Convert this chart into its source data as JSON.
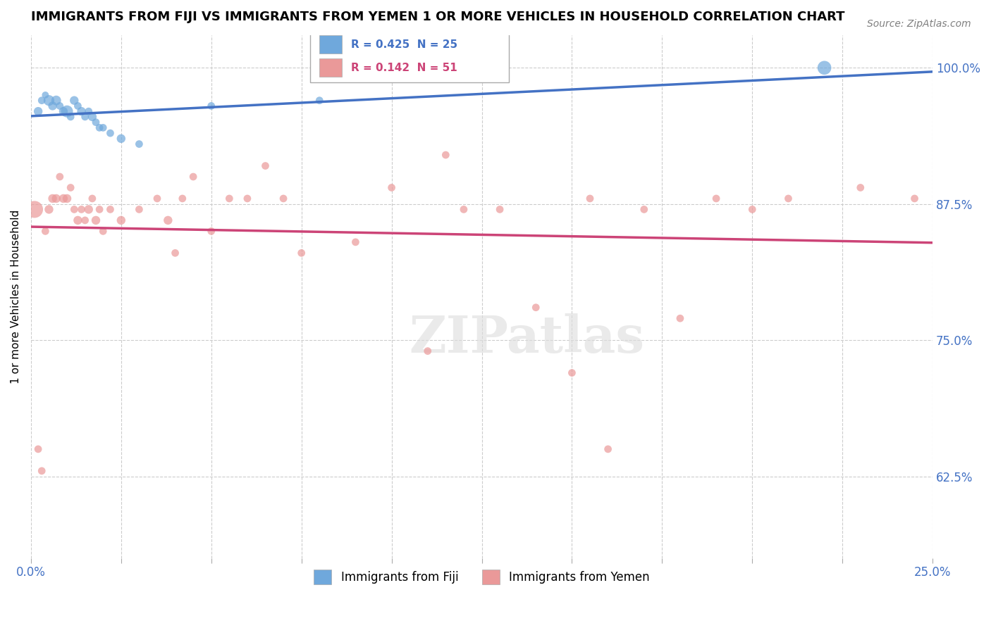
{
  "title": "IMMIGRANTS FROM FIJI VS IMMIGRANTS FROM YEMEN 1 OR MORE VEHICLES IN HOUSEHOLD CORRELATION CHART",
  "source": "Source: ZipAtlas.com",
  "xlabel": "",
  "ylabel": "1 or more Vehicles in Household",
  "xlim": [
    0.0,
    0.25
  ],
  "ylim": [
    0.55,
    1.03
  ],
  "xticks": [
    0.0,
    0.025,
    0.05,
    0.075,
    0.1,
    0.125,
    0.15,
    0.175,
    0.2,
    0.225,
    0.25
  ],
  "xtick_labels": [
    "0.0%",
    "",
    "",
    "",
    "",
    "",
    "",
    "",
    "",
    "",
    "25.0%"
  ],
  "ytick_labels_right": [
    "100.0%",
    "87.5%",
    "75.0%",
    "62.5%"
  ],
  "yticks_right": [
    1.0,
    0.875,
    0.75,
    0.625
  ],
  "fiji_R": 0.425,
  "fiji_N": 25,
  "yemen_R": 0.142,
  "yemen_N": 51,
  "fiji_color": "#6fa8dc",
  "yemen_color": "#ea9999",
  "fiji_line_color": "#4472c4",
  "yemen_line_color": "#cc4477",
  "watermark": "ZIPatlas",
  "fiji_points": [
    [
      0.002,
      0.96
    ],
    [
      0.003,
      0.97
    ],
    [
      0.004,
      0.975
    ],
    [
      0.005,
      0.97
    ],
    [
      0.006,
      0.965
    ],
    [
      0.007,
      0.97
    ],
    [
      0.008,
      0.965
    ],
    [
      0.009,
      0.96
    ],
    [
      0.01,
      0.96
    ],
    [
      0.011,
      0.955
    ],
    [
      0.012,
      0.97
    ],
    [
      0.013,
      0.965
    ],
    [
      0.014,
      0.96
    ],
    [
      0.015,
      0.955
    ],
    [
      0.016,
      0.96
    ],
    [
      0.017,
      0.955
    ],
    [
      0.018,
      0.95
    ],
    [
      0.019,
      0.945
    ],
    [
      0.02,
      0.945
    ],
    [
      0.022,
      0.94
    ],
    [
      0.025,
      0.935
    ],
    [
      0.03,
      0.93
    ],
    [
      0.05,
      0.965
    ],
    [
      0.08,
      0.97
    ],
    [
      0.22,
      1.0
    ]
  ],
  "fiji_sizes": [
    80,
    60,
    50,
    120,
    80,
    100,
    60,
    80,
    150,
    60,
    80,
    60,
    80,
    60,
    60,
    80,
    60,
    60,
    60,
    60,
    80,
    60,
    60,
    60,
    200
  ],
  "yemen_points": [
    [
      0.001,
      0.87
    ],
    [
      0.002,
      0.65
    ],
    [
      0.003,
      0.63
    ],
    [
      0.004,
      0.85
    ],
    [
      0.005,
      0.87
    ],
    [
      0.006,
      0.88
    ],
    [
      0.007,
      0.88
    ],
    [
      0.008,
      0.9
    ],
    [
      0.009,
      0.88
    ],
    [
      0.01,
      0.88
    ],
    [
      0.011,
      0.89
    ],
    [
      0.012,
      0.87
    ],
    [
      0.013,
      0.86
    ],
    [
      0.014,
      0.87
    ],
    [
      0.015,
      0.86
    ],
    [
      0.016,
      0.87
    ],
    [
      0.017,
      0.88
    ],
    [
      0.018,
      0.86
    ],
    [
      0.019,
      0.87
    ],
    [
      0.02,
      0.85
    ],
    [
      0.022,
      0.87
    ],
    [
      0.025,
      0.86
    ],
    [
      0.03,
      0.87
    ],
    [
      0.035,
      0.88
    ],
    [
      0.038,
      0.86
    ],
    [
      0.04,
      0.83
    ],
    [
      0.042,
      0.88
    ],
    [
      0.045,
      0.9
    ],
    [
      0.05,
      0.85
    ],
    [
      0.055,
      0.88
    ],
    [
      0.06,
      0.88
    ],
    [
      0.065,
      0.91
    ],
    [
      0.07,
      0.88
    ],
    [
      0.075,
      0.83
    ],
    [
      0.09,
      0.84
    ],
    [
      0.1,
      0.89
    ],
    [
      0.11,
      0.74
    ],
    [
      0.115,
      0.92
    ],
    [
      0.12,
      0.87
    ],
    [
      0.13,
      0.87
    ],
    [
      0.14,
      0.78
    ],
    [
      0.15,
      0.72
    ],
    [
      0.155,
      0.88
    ],
    [
      0.16,
      0.65
    ],
    [
      0.17,
      0.87
    ],
    [
      0.18,
      0.77
    ],
    [
      0.19,
      0.88
    ],
    [
      0.2,
      0.87
    ],
    [
      0.21,
      0.88
    ],
    [
      0.23,
      0.89
    ],
    [
      0.245,
      0.88
    ]
  ],
  "yemen_sizes": [
    300,
    60,
    60,
    60,
    80,
    80,
    80,
    60,
    80,
    80,
    60,
    60,
    80,
    60,
    60,
    80,
    60,
    80,
    60,
    60,
    60,
    80,
    60,
    60,
    80,
    60,
    60,
    60,
    60,
    60,
    60,
    60,
    60,
    60,
    60,
    60,
    60,
    60,
    60,
    60,
    60,
    60,
    60,
    60,
    60,
    60,
    60,
    60,
    60,
    60,
    60
  ],
  "background_color": "#ffffff",
  "grid_color": "#cccccc"
}
